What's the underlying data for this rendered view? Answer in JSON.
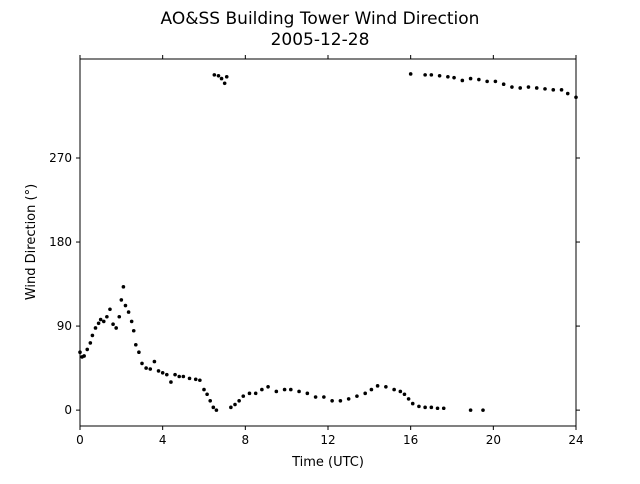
{
  "chart_data": {
    "type": "scatter",
    "title": "AO&SS Building Tower Wind Direction",
    "subtitle": "2005-12-28",
    "x_label": "Time (UTC)",
    "y_label": "Wind Direction (°)",
    "color": "#000000",
    "x": [
      0,
      0.1,
      0.2,
      0.35,
      0.5,
      0.6,
      0.75,
      0.9,
      1.0,
      1.15,
      1.3,
      1.45,
      1.6,
      1.75,
      1.9,
      2.0,
      2.1,
      2.2,
      2.35,
      2.5,
      2.6,
      2.7,
      2.85,
      3.0,
      3.2,
      3.4,
      3.6,
      3.8,
      4.0,
      4.2,
      4.4,
      4.6,
      4.8,
      5.0,
      5.3,
      5.6,
      5.8,
      6.0,
      6.15,
      6.3,
      6.45,
      6.6,
      6.5,
      6.7,
      6.85,
      7.0,
      7.1,
      7.3,
      7.5,
      7.7,
      7.9,
      8.2,
      8.5,
      8.8,
      9.1,
      9.5,
      9.9,
      10.2,
      10.6,
      11.0,
      11.4,
      11.8,
      12.2,
      12.6,
      13.0,
      13.4,
      13.8,
      14.1,
      14.4,
      14.8,
      15.2,
      15.5,
      15.7,
      15.9,
      16.1,
      16.4,
      16.7,
      17.0,
      17.3,
      17.6,
      18.9,
      19.5,
      16.0,
      16.7,
      17.0,
      17.4,
      17.8,
      18.1,
      18.5,
      18.9,
      19.3,
      19.7,
      20.1,
      20.5,
      20.9,
      21.3,
      21.7,
      22.1,
      22.5,
      22.9,
      23.3,
      23.6,
      24.0
    ],
    "values": [
      62,
      57,
      58,
      65,
      72,
      80,
      88,
      93,
      97,
      95,
      100,
      108,
      92,
      88,
      100,
      118,
      132,
      112,
      105,
      95,
      85,
      70,
      62,
      50,
      45,
      44,
      52,
      42,
      40,
      38,
      30,
      38,
      36,
      36,
      34,
      33,
      32,
      22,
      17,
      10,
      3,
      0,
      359,
      358,
      355,
      350,
      357,
      3,
      6,
      10,
      15,
      18,
      18,
      22,
      25,
      20,
      22,
      22,
      20,
      18,
      14,
      14,
      10,
      10,
      12,
      15,
      18,
      22,
      26,
      25,
      22,
      20,
      17,
      12,
      7,
      4,
      3,
      3,
      2,
      2,
      0,
      0,
      360,
      359,
      359,
      358,
      357,
      356,
      353,
      355,
      354,
      352,
      352,
      349,
      346,
      345,
      346,
      345,
      344,
      343,
      343,
      339,
      335
    ],
    "xlim": [
      0,
      24
    ],
    "ylim": [
      -17,
      376
    ],
    "xticks": [
      0,
      4,
      8,
      12,
      16,
      20,
      24
    ],
    "yticks": [
      0,
      90,
      180,
      270
    ]
  }
}
